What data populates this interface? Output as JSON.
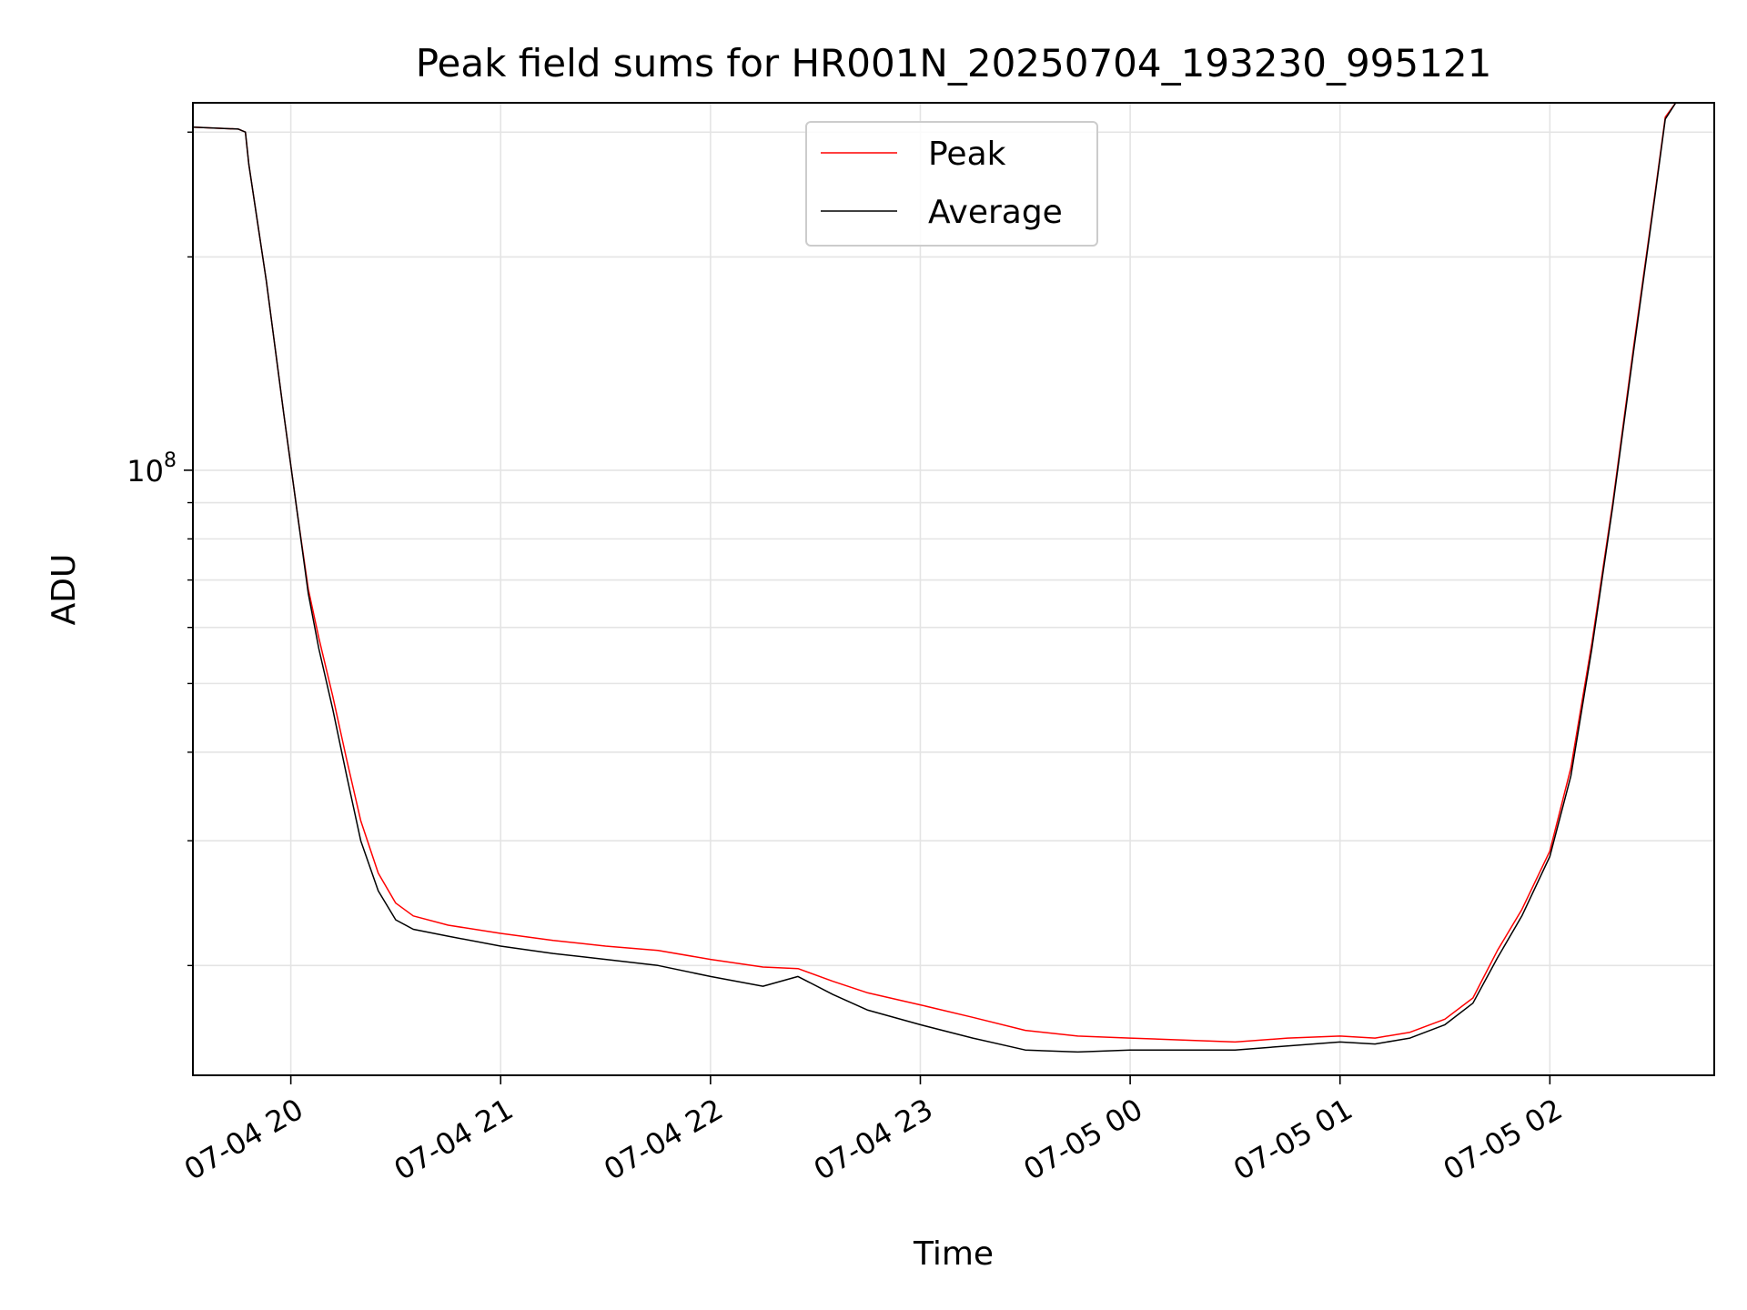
{
  "chart_data": {
    "type": "line",
    "title": "Peak field sums for HR001N_20250704_193230_995121",
    "xlabel": "Time",
    "ylabel": "ADU",
    "y_scale": "log",
    "ylim": [
      14000000,
      330000000
    ],
    "xlim": [
      "2025-07-04 19:32",
      "2025-07-05 02:47"
    ],
    "x_ticks": [
      {
        "time": "2025-07-04 20:00",
        "label": "07-04 20"
      },
      {
        "time": "2025-07-04 21:00",
        "label": "07-04 21"
      },
      {
        "time": "2025-07-04 22:00",
        "label": "07-04 22"
      },
      {
        "time": "2025-07-04 23:00",
        "label": "07-04 23"
      },
      {
        "time": "2025-07-05 00:00",
        "label": "07-05 00"
      },
      {
        "time": "2025-07-05 01:00",
        "label": "07-05 01"
      },
      {
        "time": "2025-07-05 02:00",
        "label": "07-05 02"
      }
    ],
    "y_major_ticks": [
      {
        "value": 100000000,
        "label_base": "10",
        "label_exp": "8"
      }
    ],
    "y_minor_ticks": [
      20000000,
      30000000,
      40000000,
      50000000,
      60000000,
      70000000,
      80000000,
      90000000,
      200000000,
      300000000
    ],
    "grid": true,
    "legend_position": "top-center",
    "series": [
      {
        "name": "Peak",
        "color": "#ff0000",
        "points": [
          [
            "2025-07-04 19:32",
            305000000
          ],
          [
            "2025-07-04 19:45",
            303000000
          ],
          [
            "2025-07-04 19:47",
            300000000
          ],
          [
            "2025-07-04 19:48",
            270000000
          ],
          [
            "2025-07-04 19:53",
            185000000
          ],
          [
            "2025-07-04 19:58",
            120000000
          ],
          [
            "2025-07-04 20:02",
            86000000
          ],
          [
            "2025-07-04 20:05",
            68000000
          ],
          [
            "2025-07-04 20:08",
            58000000
          ],
          [
            "2025-07-04 20:12",
            48000000
          ],
          [
            "2025-07-04 20:16",
            39000000
          ],
          [
            "2025-07-04 20:20",
            32000000
          ],
          [
            "2025-07-04 20:25",
            27000000
          ],
          [
            "2025-07-04 20:30",
            24500000
          ],
          [
            "2025-07-04 20:35",
            23500000
          ],
          [
            "2025-07-04 20:45",
            22800000
          ],
          [
            "2025-07-04 21:00",
            22200000
          ],
          [
            "2025-07-04 21:15",
            21700000
          ],
          [
            "2025-07-04 21:30",
            21300000
          ],
          [
            "2025-07-04 21:45",
            21000000
          ],
          [
            "2025-07-04 22:00",
            20400000
          ],
          [
            "2025-07-04 22:15",
            19900000
          ],
          [
            "2025-07-04 22:25",
            19800000
          ],
          [
            "2025-07-04 22:35",
            19000000
          ],
          [
            "2025-07-04 22:45",
            18300000
          ],
          [
            "2025-07-04 23:00",
            17600000
          ],
          [
            "2025-07-04 23:15",
            16900000
          ],
          [
            "2025-07-04 23:30",
            16200000
          ],
          [
            "2025-07-04 23:45",
            15900000
          ],
          [
            "2025-07-05 00:00",
            15800000
          ],
          [
            "2025-07-05 00:15",
            15700000
          ],
          [
            "2025-07-05 00:30",
            15600000
          ],
          [
            "2025-07-05 00:45",
            15800000
          ],
          [
            "2025-07-05 01:00",
            15900000
          ],
          [
            "2025-07-05 01:10",
            15800000
          ],
          [
            "2025-07-05 01:20",
            16100000
          ],
          [
            "2025-07-05 01:30",
            16800000
          ],
          [
            "2025-07-05 01:38",
            18000000
          ],
          [
            "2025-07-05 01:45",
            21000000
          ],
          [
            "2025-07-05 01:52",
            24000000
          ],
          [
            "2025-07-05 02:00",
            29000000
          ],
          [
            "2025-07-05 02:06",
            38000000
          ],
          [
            "2025-07-05 02:12",
            57000000
          ],
          [
            "2025-07-05 02:18",
            90000000
          ],
          [
            "2025-07-05 02:24",
            150000000
          ],
          [
            "2025-07-05 02:30",
            245000000
          ],
          [
            "2025-07-05 02:33",
            315000000
          ],
          [
            "2025-07-05 02:36",
            330000000
          ]
        ]
      },
      {
        "name": "Average",
        "color": "#000000",
        "points": [
          [
            "2025-07-04 19:32",
            305000000
          ],
          [
            "2025-07-04 19:45",
            303000000
          ],
          [
            "2025-07-04 19:47",
            300000000
          ],
          [
            "2025-07-04 19:48",
            270000000
          ],
          [
            "2025-07-04 19:53",
            185000000
          ],
          [
            "2025-07-04 19:58",
            120000000
          ],
          [
            "2025-07-04 20:02",
            86000000
          ],
          [
            "2025-07-04 20:05",
            67000000
          ],
          [
            "2025-07-04 20:08",
            56000000
          ],
          [
            "2025-07-04 20:12",
            46000000
          ],
          [
            "2025-07-04 20:16",
            37000000
          ],
          [
            "2025-07-04 20:20",
            30000000
          ],
          [
            "2025-07-04 20:25",
            25500000
          ],
          [
            "2025-07-04 20:30",
            23200000
          ],
          [
            "2025-07-04 20:35",
            22500000
          ],
          [
            "2025-07-04 20:45",
            22000000
          ],
          [
            "2025-07-04 21:00",
            21300000
          ],
          [
            "2025-07-04 21:15",
            20800000
          ],
          [
            "2025-07-04 21:30",
            20400000
          ],
          [
            "2025-07-04 21:45",
            20000000
          ],
          [
            "2025-07-04 22:00",
            19300000
          ],
          [
            "2025-07-04 22:15",
            18700000
          ],
          [
            "2025-07-04 22:25",
            19300000
          ],
          [
            "2025-07-04 22:35",
            18200000
          ],
          [
            "2025-07-04 22:45",
            17300000
          ],
          [
            "2025-07-04 23:00",
            16500000
          ],
          [
            "2025-07-04 23:15",
            15800000
          ],
          [
            "2025-07-04 23:30",
            15200000
          ],
          [
            "2025-07-04 23:45",
            15100000
          ],
          [
            "2025-07-05 00:00",
            15200000
          ],
          [
            "2025-07-05 00:15",
            15200000
          ],
          [
            "2025-07-05 00:30",
            15200000
          ],
          [
            "2025-07-05 00:45",
            15400000
          ],
          [
            "2025-07-05 01:00",
            15600000
          ],
          [
            "2025-07-05 01:10",
            15500000
          ],
          [
            "2025-07-05 01:20",
            15800000
          ],
          [
            "2025-07-05 01:30",
            16500000
          ],
          [
            "2025-07-05 01:38",
            17700000
          ],
          [
            "2025-07-05 01:45",
            20500000
          ],
          [
            "2025-07-05 01:52",
            23500000
          ],
          [
            "2025-07-05 02:00",
            28500000
          ],
          [
            "2025-07-05 02:06",
            37000000
          ],
          [
            "2025-07-05 02:12",
            56000000
          ],
          [
            "2025-07-05 02:18",
            89000000
          ],
          [
            "2025-07-05 02:24",
            148000000
          ],
          [
            "2025-07-05 02:30",
            243000000
          ],
          [
            "2025-07-05 02:33",
            313000000
          ],
          [
            "2025-07-05 02:36",
            330000000
          ]
        ]
      }
    ]
  }
}
